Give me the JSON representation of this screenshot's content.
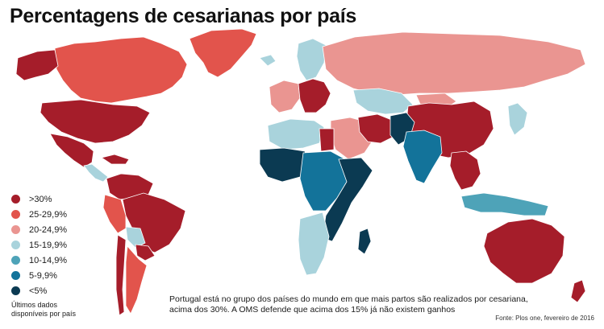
{
  "title": "Percentagens de cesarianas por país",
  "legend": {
    "items": [
      {
        "label": ">30%",
        "color": "#a51d2a"
      },
      {
        "label": "25-29,9%",
        "color": "#e2544c"
      },
      {
        "label": "20-24,9%",
        "color": "#ea9591"
      },
      {
        "label": "15-19,9%",
        "color": "#a9d3dc"
      },
      {
        "label": "10-14,9%",
        "color": "#4ea3b8"
      },
      {
        "label": "5-9,9%",
        "color": "#13739a"
      },
      {
        "label": "<5%",
        "color": "#0b3a52"
      }
    ],
    "note": "Últimos dados disponíveis por país"
  },
  "no_data_color": "#dcdcdc",
  "caption": "Portugal está no grupo dos países do mundo em que mais partos são realizados por cesariana, acima dos 30%. A OMS defende que acima dos 15% já não existem ganhos",
  "source": "Fonte: Plos one, fevereiro de 2016",
  "regions": [
    {
      "name": "greenland",
      "category": "25-29,9%"
    },
    {
      "name": "canada",
      "category": "25-29,9%"
    },
    {
      "name": "alaska",
      "category": ">30%"
    },
    {
      "name": "usa",
      "category": ">30%"
    },
    {
      "name": "mexico",
      "category": ">30%"
    },
    {
      "name": "central-america",
      "category": "15-19,9%"
    },
    {
      "name": "caribbean",
      "category": ">30%"
    },
    {
      "name": "colombia-venezuela",
      "category": ">30%"
    },
    {
      "name": "brazil",
      "category": ">30%"
    },
    {
      "name": "peru",
      "category": "25-29,9%"
    },
    {
      "name": "bolivia",
      "category": "15-19,9%"
    },
    {
      "name": "paraguay",
      "category": ">30%"
    },
    {
      "name": "argentina",
      "category": "25-29,9%"
    },
    {
      "name": "chile",
      "category": ">30%"
    },
    {
      "name": "iceland",
      "category": "15-19,9%"
    },
    {
      "name": "scandinavia",
      "category": "15-19,9%"
    },
    {
      "name": "western-europe",
      "category": "20-24,9%"
    },
    {
      "name": "central-europe",
      "category": ">30%"
    },
    {
      "name": "russia",
      "category": "20-24,9%"
    },
    {
      "name": "north-africa",
      "category": "15-19,9%"
    },
    {
      "name": "egypt",
      "category": ">30%"
    },
    {
      "name": "west-africa",
      "category": "<5%"
    },
    {
      "name": "central-africa",
      "category": "5-9,9%"
    },
    {
      "name": "east-africa",
      "category": "<5%"
    },
    {
      "name": "southern-africa",
      "category": "15-19,9%"
    },
    {
      "name": "madagascar",
      "category": "<5%"
    },
    {
      "name": "middle-east",
      "category": "20-24,9%"
    },
    {
      "name": "iran",
      "category": ">30%"
    },
    {
      "name": "central-asia",
      "category": "15-19,9%"
    },
    {
      "name": "afghanistan-pakistan",
      "category": "<5%"
    },
    {
      "name": "india",
      "category": "5-9,9%"
    },
    {
      "name": "china",
      "category": ">30%"
    },
    {
      "name": "mongolia",
      "category": "20-24,9%"
    },
    {
      "name": "southeast-asia",
      "category": ">30%"
    },
    {
      "name": "japan",
      "category": "15-19,9%"
    },
    {
      "name": "indonesia",
      "category": "10-14,9%"
    },
    {
      "name": "australia",
      "category": ">30%"
    },
    {
      "name": "new-zealand",
      "category": ">30%"
    }
  ]
}
